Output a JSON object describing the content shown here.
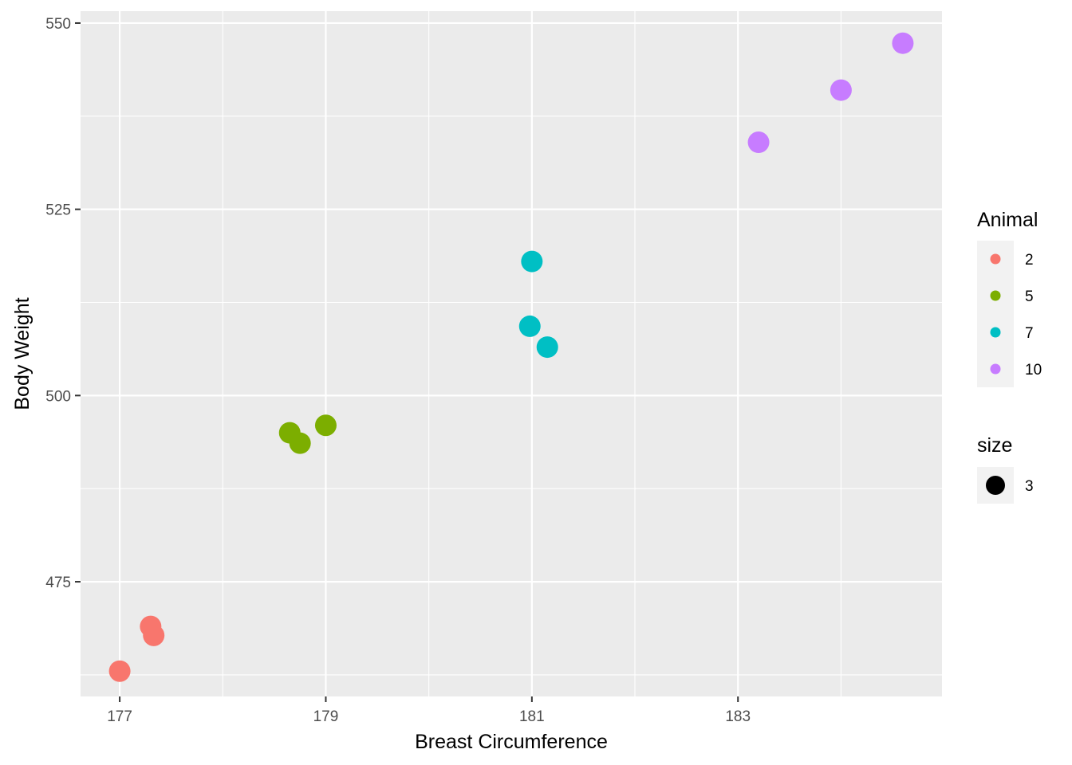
{
  "chart_data": {
    "type": "scatter",
    "title": "",
    "xlabel": "Breast Circumference",
    "ylabel": "Body Weight",
    "xlim": [
      176.62,
      184.98
    ],
    "ylim": [
      459.6,
      551.6
    ],
    "x_ticks": [
      177,
      179,
      181,
      183
    ],
    "x_minor": [
      178,
      180,
      182,
      184
    ],
    "y_ticks": [
      475,
      500,
      525,
      550
    ],
    "y_minor": [
      462.5,
      487.5,
      512.5,
      537.5
    ],
    "grid": true,
    "legend_position": "right",
    "series": [
      {
        "name": "2",
        "color": "#F8766D",
        "points": [
          [
            177.0,
            463.0
          ],
          [
            177.3,
            469.0
          ],
          [
            177.33,
            467.8
          ]
        ]
      },
      {
        "name": "5",
        "color": "#7CAE00",
        "points": [
          [
            178.65,
            495.0
          ],
          [
            178.75,
            493.6
          ],
          [
            179.0,
            496.0
          ]
        ]
      },
      {
        "name": "7",
        "color": "#00BFC4",
        "points": [
          [
            181.0,
            518.0
          ],
          [
            180.98,
            509.3
          ],
          [
            181.15,
            506.5
          ]
        ]
      },
      {
        "name": "10",
        "color": "#C77CFF",
        "points": [
          [
            183.2,
            534.0
          ],
          [
            184.0,
            541.0
          ],
          [
            184.6,
            547.3
          ]
        ]
      }
    ],
    "legends": {
      "color": {
        "title": "Animal",
        "labels": [
          "2",
          "5",
          "7",
          "10"
        ]
      },
      "size": {
        "title": "size",
        "labels": [
          "3"
        ]
      }
    }
  }
}
